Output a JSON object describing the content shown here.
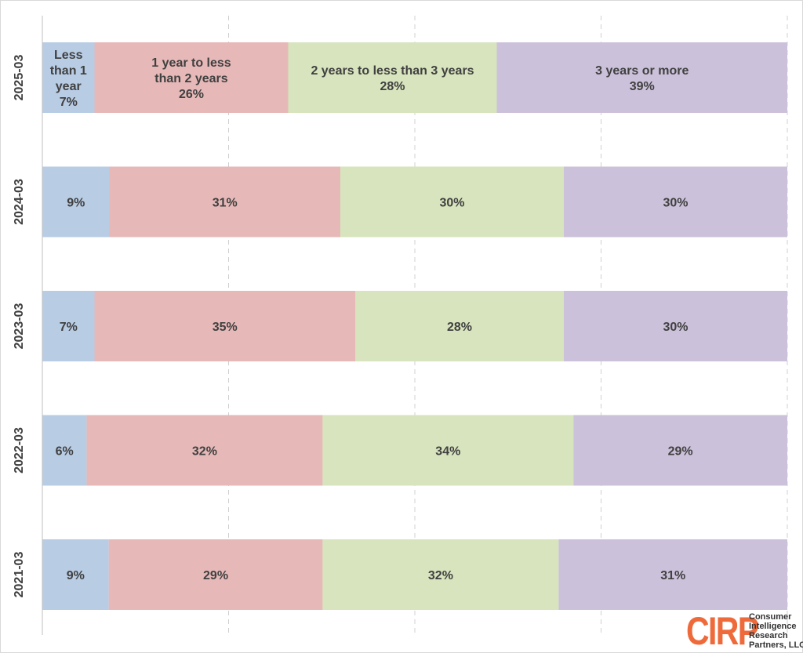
{
  "chart_data": {
    "type": "bar",
    "orientation": "horizontal",
    "stacked": true,
    "categories": [
      "2025-03",
      "2024-03",
      "2023-03",
      "2022-03",
      "2021-03"
    ],
    "series": [
      {
        "name": "Less than 1 year",
        "values": [
          7,
          9,
          7,
          6,
          9
        ],
        "color": "#b8cce4"
      },
      {
        "name": "1 year to less than 2 years",
        "values": [
          26,
          31,
          35,
          32,
          29
        ],
        "color": "#e6b9b8"
      },
      {
        "name": "2 years to less than 3 years",
        "values": [
          28,
          30,
          28,
          34,
          32
        ],
        "color": "#d7e4bd"
      },
      {
        "name": "3 years or more",
        "values": [
          39,
          30,
          30,
          29,
          31
        ],
        "color": "#ccc1da"
      }
    ],
    "data_labels": [
      [
        "Less than 1 year 7%",
        "1 year to less than 2 years 26%",
        "2 years to less than 3 years 28%",
        "3 years or more 39%"
      ],
      [
        "9%",
        "31%",
        "30%",
        "30%"
      ],
      [
        "7%",
        "35%",
        "28%",
        "30%"
      ],
      [
        "6%",
        "32%",
        "34%",
        "29%"
      ],
      [
        "9%",
        "29%",
        "32%",
        "31%"
      ]
    ],
    "label_lines": {
      "0": [
        [
          "Less",
          "than 1",
          "year",
          "7%"
        ],
        [
          "1 year to less",
          "than 2 years",
          "26%"
        ],
        [
          "2 years to less than 3 years",
          "28%"
        ],
        [
          "3 years or more",
          "39%"
        ]
      ]
    },
    "xlim": [
      0,
      100
    ],
    "grid": "vertical dashed",
    "legend": "none",
    "title": "",
    "xlabel": "",
    "ylabel": ""
  },
  "logo": {
    "mark": "CIRP",
    "lines": [
      "Consumer",
      "Intelligence",
      "Research",
      "Partners, LLC"
    ]
  }
}
